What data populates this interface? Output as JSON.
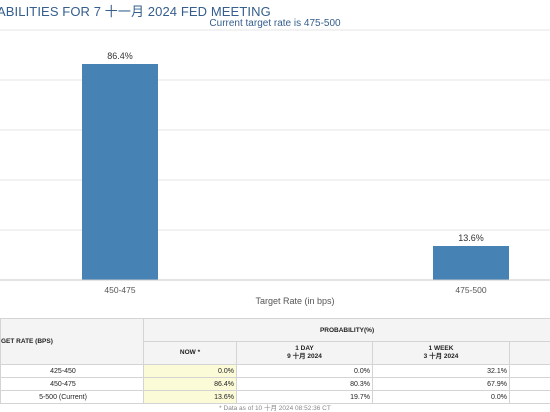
{
  "header": {
    "title": "ABILITIES FOR 7 十一月 2024 FED MEETING",
    "subtitle": "Current target rate is 475-500"
  },
  "chart_data": {
    "type": "bar",
    "categories": [
      "450-475",
      "475-500"
    ],
    "values": [
      86.4,
      13.6
    ],
    "value_labels": [
      "86.4%",
      "13.6%"
    ],
    "xlabel": "Target Rate (in bps)",
    "ylabel": "",
    "ylim": [
      0,
      100
    ],
    "grid": true,
    "bar_color": "#4682b4"
  },
  "table": {
    "target_header": "GET RATE (BPS)",
    "prob_header": "PROBABILITY(%)",
    "col_now": "NOW *",
    "col_1day_l1": "1 DAY",
    "col_1day_l2": "9 十月 2024",
    "col_1week_l1": "1 WEEK",
    "col_1week_l2": "3 十月 2024",
    "rows": [
      {
        "label": "425-450",
        "now": "0.0%",
        "day": "0.0%",
        "week": "32.1%"
      },
      {
        "label": "450-475",
        "now": "86.4%",
        "day": "80.3%",
        "week": "67.9%"
      },
      {
        "label": "5-500 (Current)",
        "now": "13.6%",
        "day": "19.7%",
        "week": "0.0%"
      }
    ],
    "footnote": "* Data as of 10 十月 2024 08:52:36 CT"
  }
}
